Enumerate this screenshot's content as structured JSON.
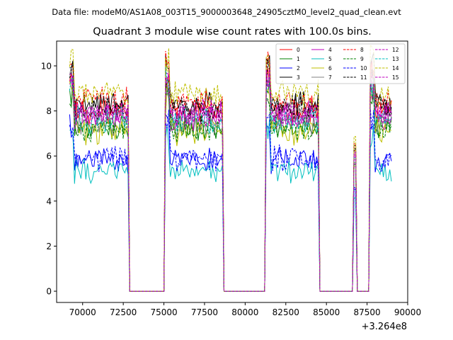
{
  "chart_data": {
    "type": "line",
    "suptitle": "Data file: modeM0/AS1A08_003T15_9000003648_24905cztM0_level2_quad_clean.evt",
    "title": "Quadrant 3 module wise count rates with 100.0s bins.",
    "xlabel": "",
    "ylabel": "",
    "x_offset_label": "+3.264e8",
    "xlim": [
      68400,
      90000
    ],
    "ylim": [
      -0.5,
      11.1
    ],
    "xticks": [
      70000,
      72500,
      75000,
      77500,
      80000,
      82500,
      85000,
      87500,
      90000
    ],
    "xtick_labels": [
      "70000",
      "72500",
      "75000",
      "77500",
      "80000",
      "82500",
      "85000",
      "87500",
      "90000"
    ],
    "yticks": [
      0,
      2,
      4,
      6,
      8,
      10
    ],
    "ytick_labels": [
      "0",
      "2",
      "4",
      "6",
      "8",
      "10"
    ],
    "legend_position": "top-right",
    "legend_columns": 4,
    "active_segments": [
      [
        69200,
        72800
      ],
      [
        75100,
        78600
      ],
      [
        81300,
        84500
      ],
      [
        86700,
        86800
      ],
      [
        87700,
        89000
      ]
    ],
    "gap_level": 0,
    "series": [
      {
        "name": "0",
        "color": "#ff0000",
        "dash": "solid",
        "level": 8.0
      },
      {
        "name": "1",
        "color": "#008000",
        "dash": "solid",
        "level": 7.3
      },
      {
        "name": "2",
        "color": "#0000ff",
        "dash": "solid",
        "level": 5.8
      },
      {
        "name": "3",
        "color": "#000000",
        "dash": "solid",
        "level": 8.3
      },
      {
        "name": "4",
        "color": "#bf00bf",
        "dash": "solid",
        "level": 7.7
      },
      {
        "name": "5",
        "color": "#00bfbf",
        "dash": "solid",
        "level": 5.3
      },
      {
        "name": "6",
        "color": "#bfbf00",
        "dash": "solid",
        "level": 7.1
      },
      {
        "name": "7",
        "color": "#808080",
        "dash": "solid",
        "level": 7.5
      },
      {
        "name": "8",
        "color": "#ff0000",
        "dash": "dashed",
        "level": 8.4
      },
      {
        "name": "9",
        "color": "#008000",
        "dash": "dashed",
        "level": 7.2
      },
      {
        "name": "10",
        "color": "#0000ff",
        "dash": "dashed",
        "level": 5.9
      },
      {
        "name": "11",
        "color": "#000000",
        "dash": "dashed",
        "level": 8.1
      },
      {
        "name": "12",
        "color": "#bf00bf",
        "dash": "dashed",
        "level": 7.9
      },
      {
        "name": "13",
        "color": "#00bfbf",
        "dash": "dashed",
        "level": 7.6
      },
      {
        "name": "14",
        "color": "#bfbf00",
        "dash": "dashed",
        "level": 8.8
      },
      {
        "name": "15",
        "color": "#bf00bf",
        "dash": "dashed",
        "level": 7.8
      }
    ]
  }
}
